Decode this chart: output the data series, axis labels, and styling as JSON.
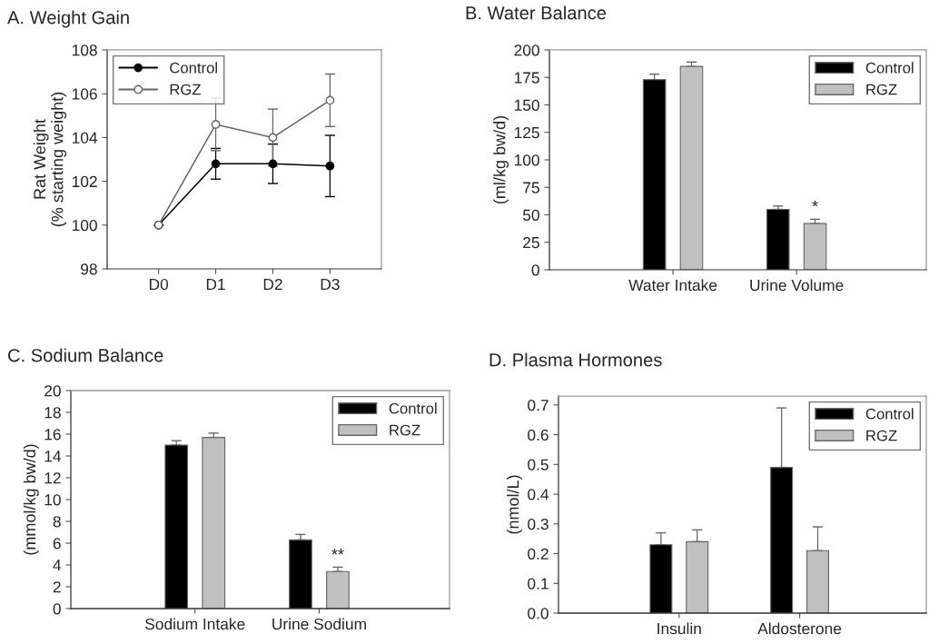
{
  "chart_data": [
    {
      "type": "line",
      "title": "A. Weight Gain",
      "ylabel": "Rat Weight\n(% starting weight)",
      "categories": [
        "D0",
        "D1",
        "D2",
        "D3"
      ],
      "ylim": [
        98,
        108
      ],
      "yticks": [
        98,
        100,
        102,
        104,
        106,
        108
      ],
      "grid": false,
      "legend": "top left",
      "marker": "circle",
      "line_style": "solid",
      "series": [
        {
          "name": "Control",
          "color": "#000000",
          "values": [
            100,
            102.8,
            102.8,
            102.7
          ],
          "errors": [
            null,
            0.7,
            0.9,
            1.4
          ]
        },
        {
          "name": "RGZ",
          "color": "#666666",
          "values": [
            100,
            104.6,
            104.0,
            105.7
          ],
          "errors": [
            null,
            1.2,
            1.3,
            1.2
          ]
        }
      ]
    },
    {
      "type": "bar",
      "title": "B. Water Balance",
      "ylabel": "(ml/kg bw/d)",
      "categories": [
        "Water Intake",
        "Urine Volume"
      ],
      "ylim": [
        0,
        200
      ],
      "yticks": [
        0,
        25,
        50,
        75,
        100,
        125,
        150,
        175,
        200
      ],
      "grid": false,
      "legend": "top right",
      "series": [
        {
          "name": "Control",
          "color": "#000000",
          "values": [
            173,
            55
          ],
          "errors": [
            [
              173,
              178
            ],
            [
              55,
              58
            ]
          ]
        },
        {
          "name": "RGZ",
          "color": "#c0c0c0",
          "values": [
            185,
            42
          ],
          "errors": [
            [
              185,
              189
            ],
            [
              42,
              46
            ]
          ]
        }
      ],
      "annotations": [
        "*"
      ]
    },
    {
      "type": "bar",
      "title": "C. Sodium Balance",
      "ylabel": "(mmol/kg bw/d)",
      "categories": [
        "Sodium Intake",
        "Urine Sodium"
      ],
      "ylim": [
        0,
        20
      ],
      "yticks": [
        0,
        2,
        4,
        6,
        8,
        10,
        12,
        14,
        16,
        18,
        20
      ],
      "grid": false,
      "legend": "top right",
      "series": [
        {
          "name": "Control",
          "color": "#000000",
          "values": [
            15.0,
            6.3
          ],
          "errors": [
            [
              15.0,
              15.4
            ],
            [
              6.3,
              6.8
            ]
          ]
        },
        {
          "name": "RGZ",
          "color": "#c0c0c0",
          "values": [
            15.7,
            3.4
          ],
          "errors": [
            [
              15.7,
              16.1
            ],
            [
              3.4,
              3.8
            ]
          ]
        }
      ],
      "annotations": [
        "**"
      ]
    },
    {
      "type": "bar",
      "title": "D. Plasma Hormones",
      "ylabel": "(nmol/L)",
      "categories": [
        "Insulin",
        "Aldosterone"
      ],
      "ylim": [
        0,
        0.73
      ],
      "yticks": [
        {
          "value": 0,
          "label": "0.0"
        },
        0.1,
        0.2,
        0.3,
        0.4,
        0.5,
        0.6,
        0.7
      ],
      "grid": false,
      "legend": "top right",
      "series": [
        {
          "name": "Control",
          "color": "#000000",
          "values": [
            0.23,
            0.49
          ],
          "errors": [
            [
              0.23,
              0.27
            ],
            [
              0.49,
              0.69
            ]
          ]
        },
        {
          "name": "RGZ",
          "color": "#c0c0c0",
          "values": [
            0.24,
            0.21
          ],
          "errors": [
            [
              0.24,
              0.28
            ],
            [
              0.21,
              0.29
            ]
          ]
        }
      ]
    }
  ]
}
